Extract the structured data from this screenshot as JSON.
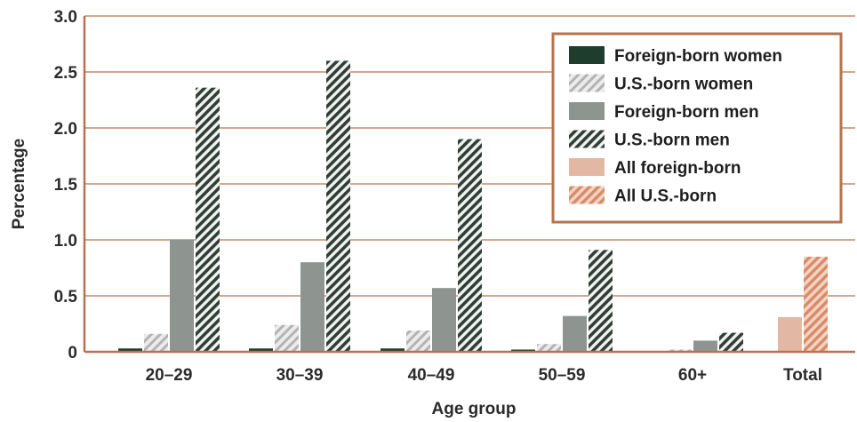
{
  "chart_data": {
    "type": "bar",
    "title": "",
    "xlabel": "Age group",
    "ylabel": "Percentage",
    "ylim": [
      0,
      3.0
    ],
    "yticks": [
      "0",
      "0.5",
      "1.0",
      "1.5",
      "2.0",
      "2.5",
      "3.0"
    ],
    "categories": [
      "20–29",
      "30–39",
      "40–49",
      "50–59",
      "60+",
      "Total"
    ],
    "grid": true,
    "legend_position": "top-right",
    "series": [
      {
        "name": "Foreign-born women",
        "color": "#1f3d2c",
        "pattern": "solid",
        "values": [
          0.03,
          0.03,
          0.03,
          0.02,
          0.0,
          null
        ]
      },
      {
        "name": "U.S.-born women",
        "color": "#b8b8b8",
        "pattern": "hatch",
        "values": [
          0.16,
          0.24,
          0.19,
          0.07,
          0.02,
          null
        ]
      },
      {
        "name": "Foreign-born men",
        "color": "#8e9591",
        "pattern": "solid",
        "values": [
          1.0,
          0.8,
          0.57,
          0.32,
          0.1,
          null
        ]
      },
      {
        "name": "U.S.-born men",
        "color": "#2f3f36",
        "pattern": "hatch",
        "values": [
          2.36,
          2.6,
          1.9,
          0.91,
          0.17,
          null
        ]
      },
      {
        "name": "All foreign-born",
        "color": "#e2b8a3",
        "pattern": "solid",
        "values": [
          null,
          null,
          null,
          null,
          null,
          0.31
        ]
      },
      {
        "name": "All U.S.-born",
        "color": "#d98a66",
        "pattern": "hatch",
        "values": [
          null,
          null,
          null,
          null,
          null,
          0.85
        ]
      }
    ]
  }
}
